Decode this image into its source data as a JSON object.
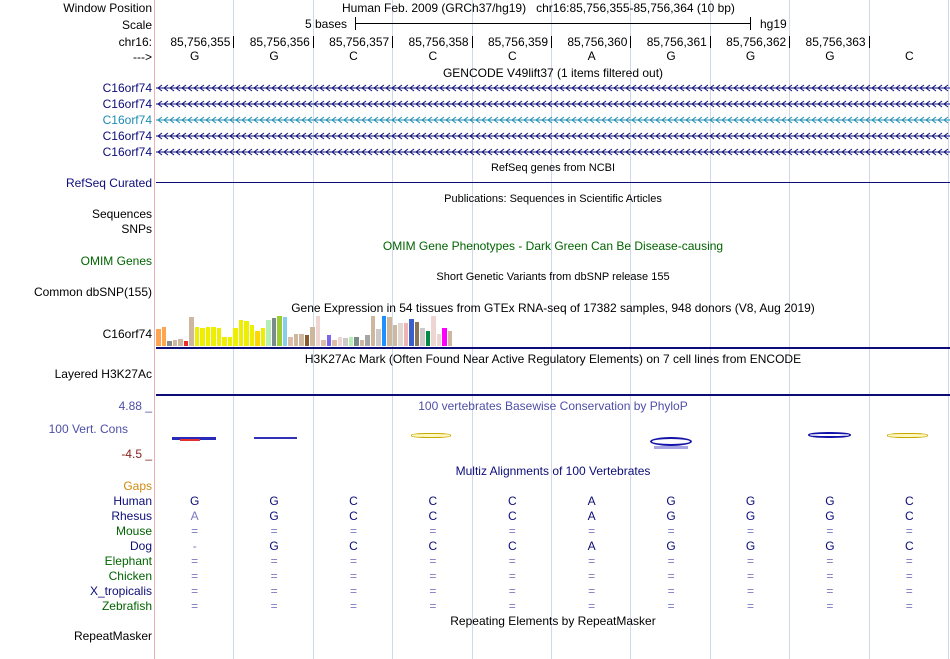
{
  "header": {
    "window_position_label": "Window Position",
    "window_position_value": "Human Feb. 2009 (GRCh37/hg19)   chr16:85,756,355-85,756,364 (10 bp)",
    "scale_label": "Scale",
    "scale_value": "5 bases",
    "scale_db": "hg19",
    "chrom_label": "chr16:",
    "strand_label": "--->",
    "positions": [
      "85,756,355",
      "85,756,356",
      "85,756,357",
      "85,756,358",
      "85,756,359",
      "85,756,360",
      "85,756,361",
      "85,756,362",
      "85,756,363"
    ],
    "bases": [
      "G",
      "G",
      "C",
      "C",
      "C",
      "A",
      "G",
      "G",
      "G",
      "C"
    ]
  },
  "gencode": {
    "title": "GENCODE V49lift37 (1 items filtered out)",
    "genes": [
      "C16orf74",
      "C16orf74",
      "C16orf74",
      "C16orf74",
      "C16orf74"
    ],
    "gene_colors": [
      "#0c0c78",
      "#0c0c78",
      "#1e8cb4",
      "#0c0c78",
      "#0c0c78"
    ]
  },
  "refseq": {
    "title": "RefSeq genes from NCBI",
    "label": "RefSeq Curated"
  },
  "publications": {
    "title": "Publications: Sequences in Scientific Articles",
    "label1": "Sequences",
    "label2": "SNPs"
  },
  "omim": {
    "title": "OMIM Gene Phenotypes - Dark Green Can Be Disease-causing",
    "label": "OMIM Genes"
  },
  "dbsnp": {
    "title": "Short Genetic Variants from dbSNP release 155",
    "label": "Common dbSNP(155)"
  },
  "gtex": {
    "title": "Gene Expression in 54 tissues from GTEx RNA-seq of 17382 samples, 948 donors (V8, Aug 2019)",
    "label": "C16orf74",
    "bar_values": [
      0.55,
      0.62,
      0.18,
      0.2,
      0.22,
      0.15,
      0.95,
      0.62,
      0.6,
      0.62,
      0.62,
      0.6,
      0.3,
      0.3,
      0.6,
      0.85,
      0.82,
      0.7,
      0.5,
      0.6,
      0.88,
      0.92,
      1.0,
      0.95,
      0.3,
      0.4,
      0.4,
      0.38,
      0.62,
      1.0,
      0.2,
      0.35,
      0.2,
      0.3,
      0.25,
      0.3,
      0.3,
      0.2,
      0.38,
      1.0,
      0.55,
      1.0,
      0.95,
      0.7,
      0.78,
      0.78,
      0.9,
      0.8,
      0.6,
      0.5,
      1.0,
      0.4,
      0.6,
      0.5
    ],
    "bar_colors": [
      "#ffa54f",
      "#ffa54f",
      "#8b8b8b",
      "#cdb79e",
      "#cdb79e",
      "#ee2c2c",
      "#cdb79e",
      "#eeee00",
      "#eeee00",
      "#eeee00",
      "#eeee00",
      "#eeee00",
      "#eeee00",
      "#eeee00",
      "#eeee00",
      "#eeee00",
      "#eeee00",
      "#eeee00",
      "#ffd700",
      "#eeee00",
      "#b4eeb4",
      "#7a8b8b",
      "#9acd32",
      "#87ceeb",
      "#ddbda8",
      "#cdb79e",
      "#cdb79e",
      "#8b5a2b",
      "#cdb79e",
      "#eed5d2",
      "#ddbda8",
      "#7a67ee",
      "#ddbda8",
      "#eed5d2",
      "#cdc9c9",
      "#b4eeb4",
      "#7a8b8b",
      "#cdb79e",
      "#a6a6a6",
      "#cdb79e",
      "#cdc9c9",
      "#1e90ff",
      "#cdb79e",
      "#cdb79e",
      "#e0d8d0",
      "#eeb4b4",
      "#3a5fcd",
      "#8b7355",
      "#cdc9c9",
      "#008b45",
      "#eed5d2",
      "#eed5d2",
      "#ff00ff",
      "#cdb79e"
    ]
  },
  "h3k27ac": {
    "title": "H3K27Ac Mark (Often Found Near Active Regulatory Elements) on 7 cell lines from ENCODE",
    "label": "Layered H3K27Ac"
  },
  "phylop": {
    "title": "100 vertebrates Basewise Conservation by PhyloP",
    "label": "100 Vert. Cons",
    "max": "4.88 _",
    "min": "-4.5 _"
  },
  "multiz": {
    "title": "Multiz Alignments of 100 Vertebrates",
    "gaps_label": "Gaps",
    "species": [
      {
        "name": "Human",
        "bases": [
          "G",
          "G",
          "C",
          "C",
          "C",
          "A",
          "G",
          "G",
          "G",
          "C"
        ]
      },
      {
        "name": "Rhesus",
        "bases": [
          "A",
          "G",
          "C",
          "C",
          "C",
          "A",
          "G",
          "G",
          "G",
          "C"
        ]
      },
      {
        "name": "Mouse",
        "bases": [
          "=",
          "=",
          "=",
          "=",
          "=",
          "=",
          "=",
          "=",
          "=",
          "="
        ]
      },
      {
        "name": "Dog",
        "bases": [
          "-",
          "G",
          "C",
          "C",
          "C",
          "A",
          "G",
          "G",
          "G",
          "C"
        ]
      },
      {
        "name": "Elephant",
        "bases": [
          "=",
          "=",
          "=",
          "=",
          "=",
          "=",
          "=",
          "=",
          "=",
          "="
        ]
      },
      {
        "name": "Chicken",
        "bases": [
          "=",
          "=",
          "=",
          "=",
          "=",
          "=",
          "=",
          "=",
          "=",
          "="
        ]
      },
      {
        "name": "X_tropicalis",
        "bases": [
          "=",
          "=",
          "=",
          "=",
          "=",
          "=",
          "=",
          "=",
          "=",
          "="
        ]
      },
      {
        "name": "Zebrafish",
        "bases": [
          "=",
          "=",
          "=",
          "=",
          "=",
          "=",
          "=",
          "=",
          "=",
          "="
        ]
      }
    ]
  },
  "repeatmasker": {
    "title": "Repeating Elements by RepeatMasker",
    "label": "RepeatMasker"
  },
  "colors": {
    "navy": "#0c0c78",
    "blue_label": "#4e4ea8",
    "green": "#006400",
    "orange": "#d08a10",
    "teal": "#1e8cb4",
    "grid": "#cfd8e8"
  }
}
